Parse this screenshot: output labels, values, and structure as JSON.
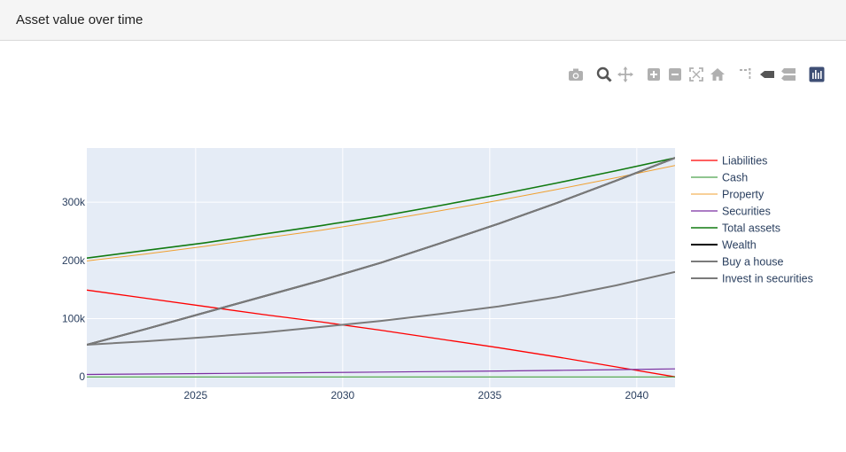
{
  "header": {
    "title": "Asset value over time"
  },
  "modebar": {
    "icons": [
      "camera-icon",
      "zoom-icon",
      "pan-icon",
      "zoom-in-icon",
      "zoom-out-icon",
      "autoscale-icon",
      "reset-axes-icon",
      "spike-lines-icon",
      "hover-closest-icon",
      "hover-compare-icon",
      "plotly-logo-icon"
    ]
  },
  "chart_data": {
    "type": "line",
    "title": "",
    "xlabel": "",
    "ylabel": "",
    "xlim": [
      2021.3,
      2041.3
    ],
    "ylim": [
      -18000,
      393000
    ],
    "xticks": [
      2025,
      2030,
      2035,
      2040
    ],
    "xtick_labels": [
      "2025",
      "2030",
      "2035",
      "2040"
    ],
    "yticks": [
      0,
      100000,
      200000,
      300000
    ],
    "ytick_labels": [
      "0",
      "100k",
      "200k",
      "300k"
    ],
    "grid": true,
    "legend_position": "right",
    "x": [
      2021.3,
      2023.3,
      2025.3,
      2027.3,
      2029.3,
      2031.3,
      2033.3,
      2035.3,
      2037.3,
      2039.3,
      2041.3
    ],
    "series": [
      {
        "name": "Liabilities",
        "color": "#ff0000",
        "width": 1.3,
        "values": [
          149000,
          135000,
          121000,
          107000,
          94000,
          80000,
          65000,
          50000,
          34000,
          17000,
          0
        ]
      },
      {
        "name": "Cash",
        "color": "#228B22",
        "width": 1,
        "values": [
          0,
          0,
          0,
          0,
          0,
          0,
          0,
          0,
          0,
          0,
          0
        ]
      },
      {
        "name": "Property",
        "color": "#f0a030",
        "width": 1,
        "values": [
          199000,
          211000,
          224000,
          238000,
          252000,
          268000,
          285000,
          303000,
          322000,
          342000,
          363000
        ]
      },
      {
        "name": "Securities",
        "color": "#7b2fa0",
        "width": 1.2,
        "values": [
          4000,
          4800,
          5600,
          6400,
          7300,
          8200,
          9100,
          10000,
          11000,
          12300,
          13600
        ]
      },
      {
        "name": "Total assets",
        "color": "#117a11",
        "width": 1.6,
        "values": [
          204000,
          217000,
          230000,
          245000,
          260000,
          276000,
          294000,
          313000,
          333000,
          354000,
          376000
        ]
      },
      {
        "name": "Wealth",
        "color": "#000000",
        "width": 2,
        "values": [
          55000,
          82000,
          110000,
          138000,
          166000,
          196000,
          229000,
          263000,
          299000,
          337000,
          376000
        ]
      },
      {
        "name": "Buy a house",
        "color": "#7a7a7a",
        "width": 2,
        "values": [
          55000,
          82000,
          110000,
          138000,
          166000,
          196000,
          229000,
          263000,
          299000,
          337000,
          376000
        ]
      },
      {
        "name": "Invest in securities",
        "color": "#7a7a7a",
        "width": 2,
        "values": [
          55000,
          61000,
          68000,
          76000,
          86000,
          96000,
          108000,
          121000,
          137000,
          157000,
          180000
        ]
      }
    ]
  }
}
